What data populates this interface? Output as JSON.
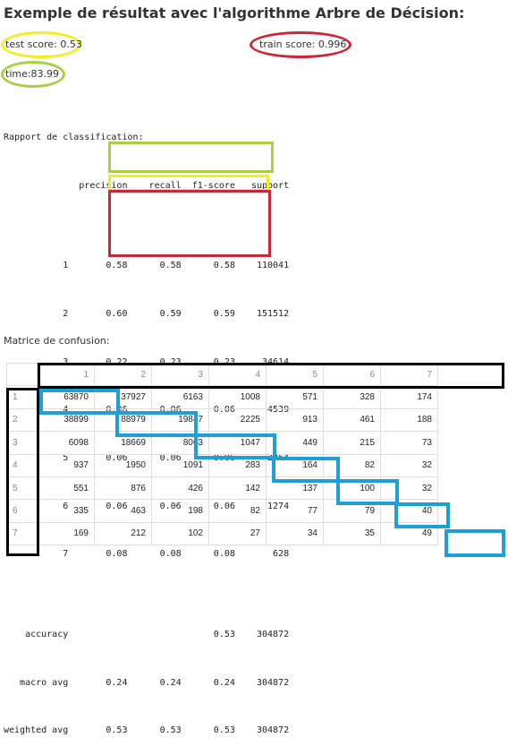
{
  "title": "Exemple de résultat avec l'algorithme Arbre de Décision:",
  "scores": {
    "test": "test score: 0.53",
    "train": "train score: 0.996",
    "time": "time:83.99"
  },
  "report": {
    "heading": "Rapport de classification:",
    "lines": [
      "              precision    recall  f1-score   support",
      "",
      "           1       0.58      0.58      0.58    110041",
      "           2       0.60      0.59      0.59    151512",
      "           3       0.22      0.23      0.23     34614",
      "           4       0.06      0.06      0.06      4539",
      "           5       0.06      0.06      0.06      2264",
      "           6       0.06      0.06      0.06      1274",
      "           7       0.08      0.08      0.08       628",
      "",
      "    accuracy                           0.53    304872",
      "   macro avg       0.24      0.24      0.24    304872",
      "weighted avg       0.53      0.53      0.53    304872"
    ]
  },
  "confusion": {
    "heading": "Matrice de confusion:",
    "columns": [
      "1",
      "2",
      "3",
      "4",
      "5",
      "6",
      "7"
    ],
    "rows": [
      {
        "label": "1",
        "values": [
          "63870",
          "37927",
          "6163",
          "1008",
          "571",
          "328",
          "174"
        ]
      },
      {
        "label": "2",
        "values": [
          "38899",
          "88979",
          "19847",
          "2225",
          "913",
          "461",
          "188"
        ]
      },
      {
        "label": "3",
        "values": [
          "6098",
          "18669",
          "8063",
          "1047",
          "449",
          "215",
          "73"
        ]
      },
      {
        "label": "4",
        "values": [
          "937",
          "1950",
          "1091",
          "283",
          "164",
          "82",
          "32"
        ]
      },
      {
        "label": "5",
        "values": [
          "551",
          "876",
          "426",
          "142",
          "137",
          "100",
          "32"
        ]
      },
      {
        "label": "6",
        "values": [
          "335",
          "463",
          "198",
          "82",
          "77",
          "79",
          "40"
        ]
      },
      {
        "label": "7",
        "values": [
          "169",
          "212",
          "102",
          "27",
          "34",
          "35",
          "49"
        ]
      }
    ]
  },
  "colors": {
    "yellow": "#f2ef1c",
    "red": "#c8283a",
    "green": "#a8cf45",
    "blue": "#1e9fd8",
    "black": "#000000"
  }
}
